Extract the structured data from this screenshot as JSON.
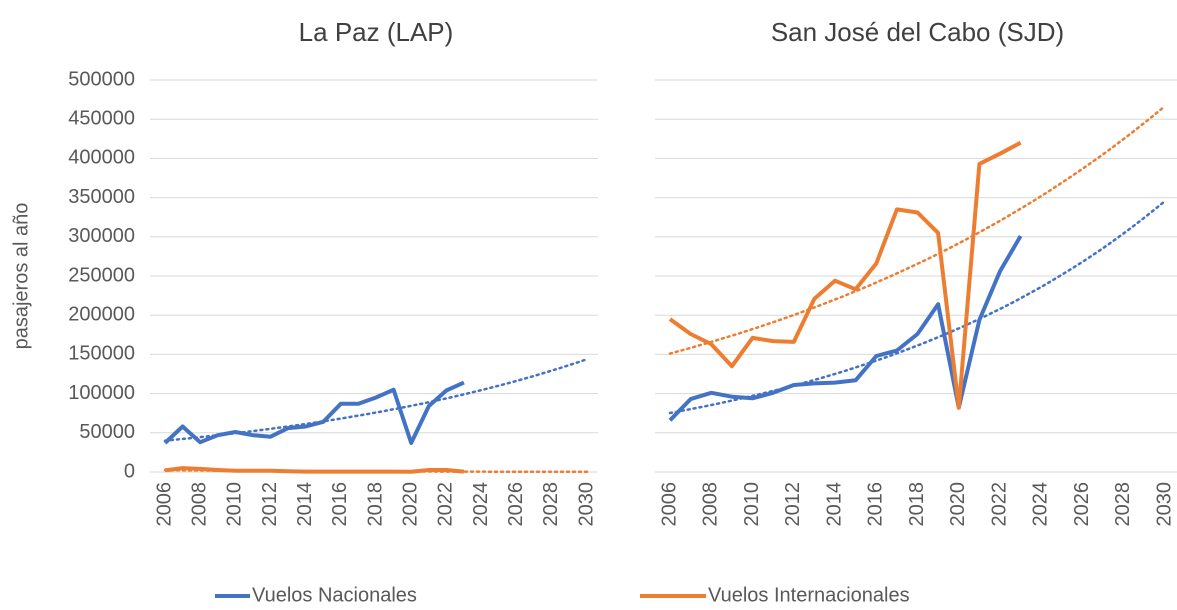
{
  "chart_data": [
    {
      "type": "line",
      "title": "La Paz (LAP)",
      "ylabel": "pasajeros al año",
      "x": [
        2006,
        2007,
        2008,
        2009,
        2010,
        2011,
        2012,
        2013,
        2014,
        2015,
        2016,
        2017,
        2018,
        2019,
        2020,
        2021,
        2022,
        2023
      ],
      "series": [
        {
          "name": "Vuelos Nacionales",
          "color": "#4472c4",
          "trendline": "exponential",
          "values": [
            37000,
            58000,
            38000,
            47000,
            51000,
            47000,
            45000,
            56000,
            58000,
            64000,
            87000,
            87000,
            95000,
            105000,
            37000,
            84000,
            104000,
            114000
          ]
        },
        {
          "name": "Vuelos Internacionales",
          "color": "#ed7d31",
          "trendline": "exponential",
          "values": [
            2000,
            5000,
            4000,
            2500,
            1500,
            1500,
            1500,
            1000,
            500,
            500,
            500,
            500,
            500,
            500,
            300,
            2500,
            2500,
            500
          ]
        }
      ],
      "xlim": [
        2006,
        2030
      ],
      "xticks": [
        2006,
        2008,
        2010,
        2012,
        2014,
        2016,
        2018,
        2020,
        2022,
        2024,
        2026,
        2028,
        2030
      ],
      "ylim": [
        0,
        500000
      ],
      "yticks": [
        0,
        50000,
        100000,
        150000,
        200000,
        250000,
        300000,
        350000,
        400000,
        450000,
        500000
      ],
      "grid": true,
      "legend": "bottom"
    },
    {
      "type": "line",
      "title": "San José del Cabo (SJD)",
      "x": [
        2006,
        2007,
        2008,
        2009,
        2010,
        2011,
        2012,
        2013,
        2014,
        2015,
        2016,
        2017,
        2018,
        2019,
        2020,
        2021,
        2022,
        2023
      ],
      "series": [
        {
          "color": "#4472c4",
          "trendline": "exponential",
          "values": [
            66000,
            93000,
            101000,
            96000,
            94000,
            101000,
            111000,
            113000,
            114000,
            117000,
            148000,
            155000,
            176000,
            214000,
            82000,
            194000,
            256000,
            301000
          ]
        },
        {
          "color": "#ed7d31",
          "trendline": "exponential",
          "values": [
            195000,
            176000,
            163000,
            135000,
            171000,
            167000,
            166000,
            221000,
            244000,
            233000,
            266000,
            335000,
            331000,
            305000,
            82000,
            393000,
            406000,
            420000
          ]
        }
      ],
      "xlim": [
        2006,
        2030
      ],
      "xticks": [
        2006,
        2008,
        2010,
        2012,
        2014,
        2016,
        2018,
        2020,
        2022,
        2024,
        2026,
        2028,
        2030
      ],
      "ylim": [
        0,
        500000
      ],
      "yticks": [
        0,
        50000,
        100000,
        150000,
        200000,
        250000,
        300000,
        350000,
        400000,
        450000,
        500000
      ],
      "grid": true
    }
  ]
}
